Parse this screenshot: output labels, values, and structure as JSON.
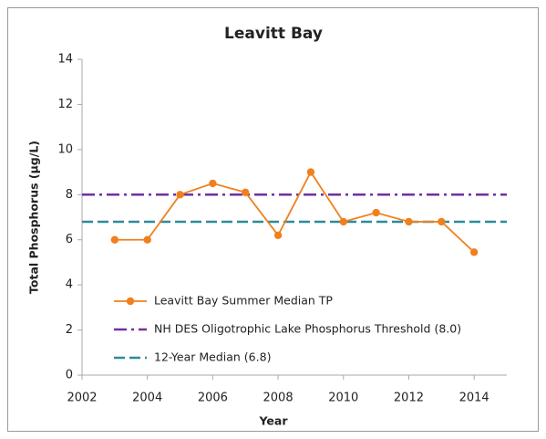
{
  "chart_data": {
    "type": "line",
    "title": "Leavitt Bay",
    "x_label": "Year",
    "y_label": "Total Phosphorus (µg/L)",
    "x": [
      2003,
      2004,
      2005,
      2006,
      2007,
      2008,
      2009,
      2010,
      2011,
      2012,
      2013,
      2014
    ],
    "series": [
      {
        "name": "Leavitt Bay Summer Median TP",
        "color": "#f0801e",
        "values": [
          6.0,
          6.0,
          8.0,
          8.5,
          8.1,
          6.2,
          9.0,
          6.8,
          7.2,
          6.8,
          6.8,
          5.45
        ]
      }
    ],
    "reference_lines": [
      {
        "name": "NH DES Oligotrophic Lake Phosphorus Threshold (8.0)",
        "value": 8.0,
        "color": "#7030a0",
        "dash": "dash-dot"
      },
      {
        "name": "12-Year Median (6.8)",
        "value": 6.8,
        "color": "#2e8b9a",
        "dash": "dashed"
      }
    ],
    "xlim": [
      2002,
      2015
    ],
    "xticks": [
      2002,
      2004,
      2006,
      2008,
      2010,
      2012,
      2014
    ],
    "ylim": [
      0,
      14
    ],
    "yticks": [
      0,
      2,
      4,
      6,
      8,
      10,
      12,
      14
    ],
    "grid": false,
    "legend": "lower left"
  }
}
